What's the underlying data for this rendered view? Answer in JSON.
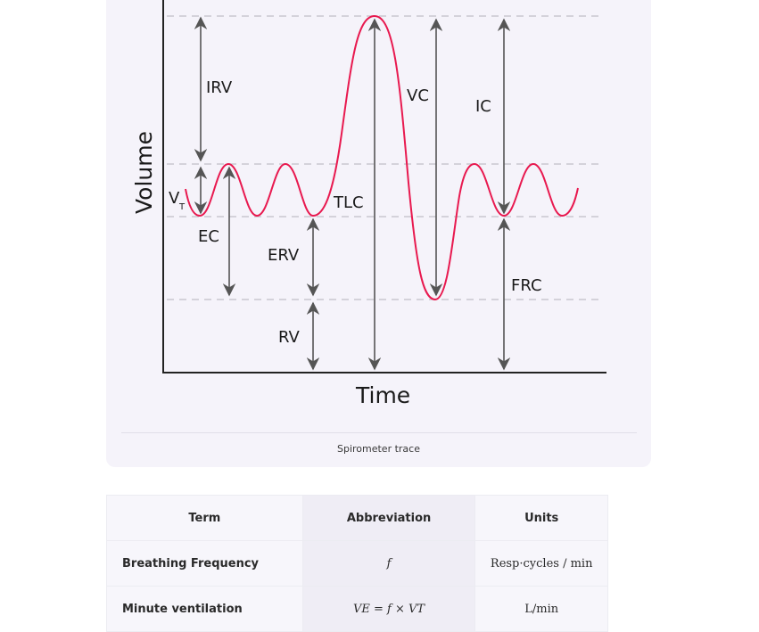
{
  "figure": {
    "y_axis_label": "Volume",
    "x_axis_label": "Time",
    "labels": {
      "irv": "IRV",
      "vc": "VC",
      "ic": "IC",
      "vt": "V",
      "vt_sub": "T",
      "tlc": "TLC",
      "ec": "EC",
      "erv": "ERV",
      "frc": "FRC",
      "rv": "RV"
    },
    "trace_color": "#e8194f",
    "caption": "Spirometer trace"
  },
  "table": {
    "headers": [
      "Term",
      "Abbreviation",
      "Units"
    ],
    "rows": [
      {
        "term": "Breathing Frequency",
        "abbreviation": "f",
        "units": "Resp·cycles / min"
      },
      {
        "term": "Minute ventilation",
        "abbreviation": "VE = f × VT",
        "units": "L/min"
      }
    ]
  }
}
